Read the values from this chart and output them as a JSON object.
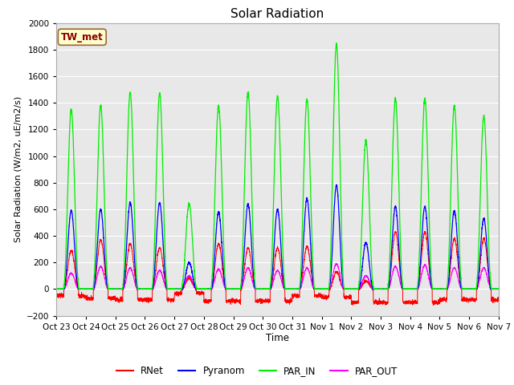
{
  "title": "Solar Radiation",
  "ylabel": "Solar Radiation (W/m2, uE/m2/s)",
  "xlabel": "Time",
  "ylim": [
    -200,
    2000
  ],
  "yticks": [
    -200,
    0,
    200,
    400,
    600,
    800,
    1000,
    1200,
    1400,
    1600,
    1800,
    2000
  ],
  "xtick_labels": [
    "Oct 23",
    "Oct 24",
    "Oct 25",
    "Oct 26",
    "Oct 27",
    "Oct 28",
    "Oct 29",
    "Oct 30",
    "Oct 31",
    "Nov 1",
    "Nov 2",
    "Nov 3",
    "Nov 4",
    "Nov 5",
    "Nov 6",
    "Nov 7"
  ],
  "annotation_text": "TW_met",
  "annotation_facecolor": "#ffffcc",
  "annotation_edgecolor": "#996633",
  "annotation_textcolor": "#880000",
  "colors": {
    "RNet": "#ff0000",
    "Pyranom": "#0000ff",
    "PAR_IN": "#00ee00",
    "PAR_OUT": "#ff00ff"
  },
  "legend_labels": [
    "RNet",
    "Pyranom",
    "PAR_IN",
    "PAR_OUT"
  ],
  "plot_bg_color": "#e8e8e8",
  "grid_color": "#ffffff",
  "num_days": 15,
  "pts_per_day": 288,
  "par_in_peaks": [
    1350,
    1380,
    1480,
    1470,
    640,
    1380,
    1480,
    1450,
    1430,
    1840,
    1120,
    1430,
    1430,
    1380,
    1300
  ],
  "pyranom_peaks": [
    590,
    600,
    650,
    650,
    200,
    580,
    640,
    600,
    680,
    780,
    350,
    620,
    620,
    590,
    530
  ],
  "rnet_peaks": [
    290,
    370,
    340,
    310,
    80,
    340,
    310,
    310,
    320,
    130,
    60,
    430,
    430,
    380,
    380
  ],
  "par_out_peaks": [
    120,
    170,
    160,
    140,
    100,
    150,
    160,
    140,
    160,
    190,
    100,
    170,
    180,
    160,
    160
  ],
  "rnet_night": [
    -50,
    -70,
    -80,
    -80,
    -30,
    -90,
    -90,
    -90,
    -50,
    -60,
    -100,
    -100,
    -100,
    -80,
    -80
  ]
}
